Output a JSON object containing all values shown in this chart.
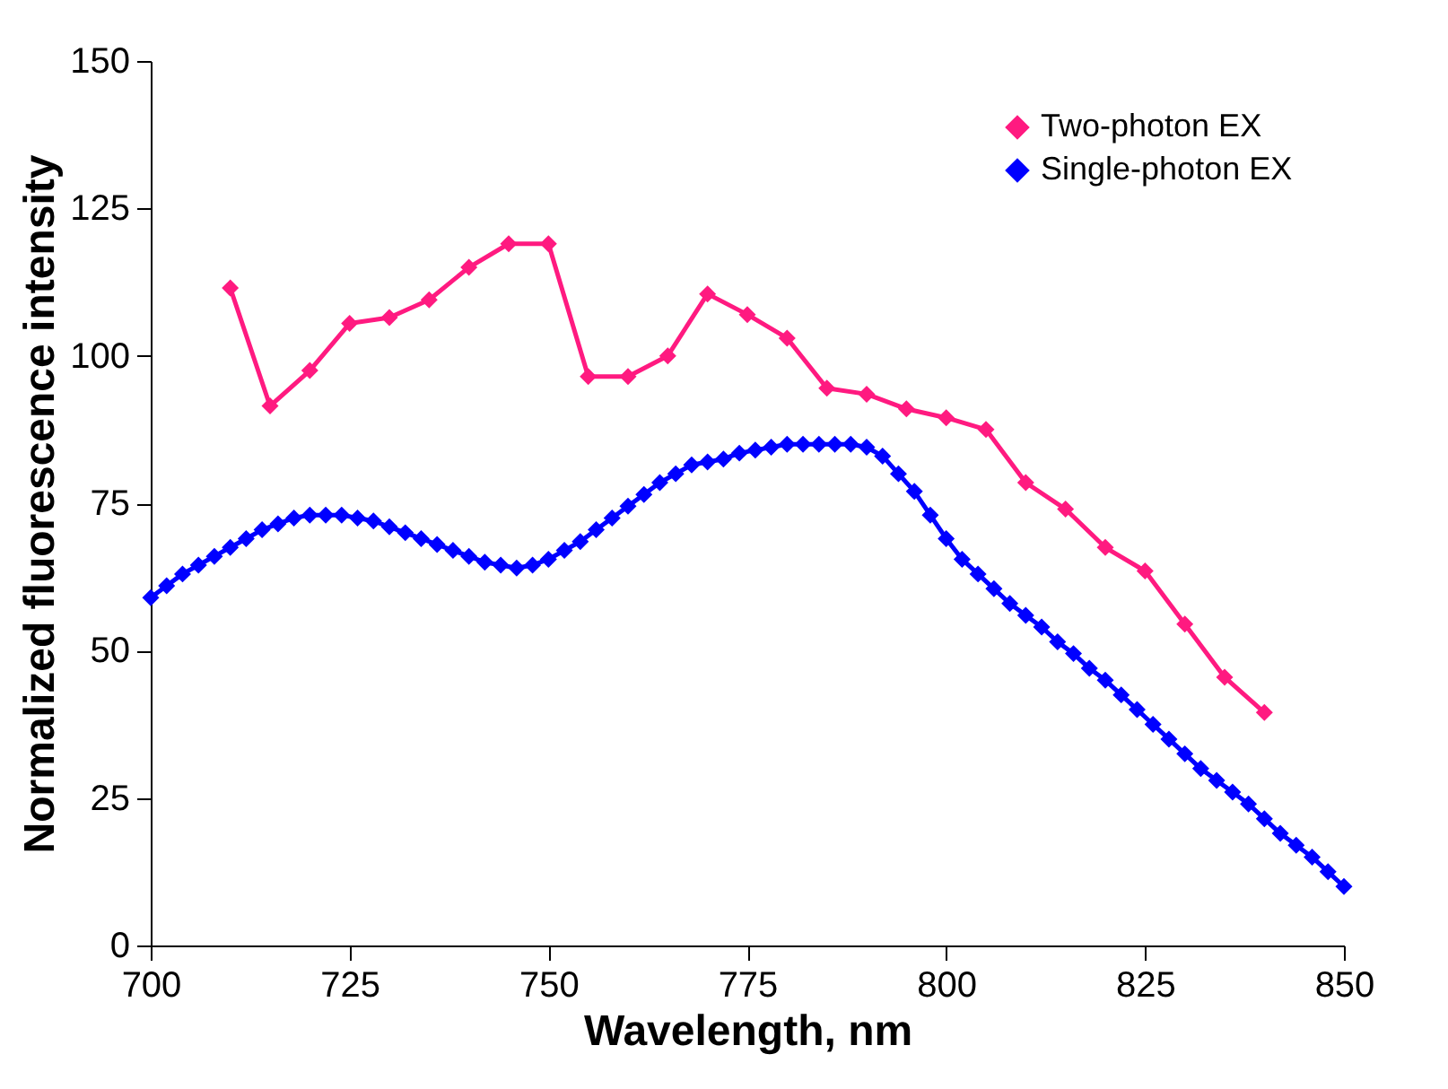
{
  "chart_data": {
    "type": "line",
    "xlabel": "Wavelength, nm",
    "ylabel": "Normalized fluorescence intensity",
    "xlim": [
      700,
      850
    ],
    "xticks": [
      700,
      725,
      750,
      775,
      800,
      825,
      850
    ],
    "ylim": [
      0,
      150
    ],
    "yticks": [
      0,
      25,
      50,
      75,
      100,
      125,
      150
    ],
    "grid": false,
    "legend": "top right",
    "marker": "diamond",
    "line_style": "solid",
    "series": [
      {
        "name": "Two-photon EX",
        "color": "#ff1a80",
        "x": [
          710,
          715,
          720,
          725,
          730,
          735,
          740,
          745,
          750,
          755,
          760,
          765,
          770,
          775,
          780,
          785,
          790,
          795,
          800,
          805,
          810,
          815,
          820,
          825,
          830,
          835,
          840
        ],
        "values": [
          111.5,
          91.5,
          97.5,
          105.5,
          106.5,
          109.5,
          115,
          119,
          119,
          96.5,
          96.5,
          100,
          110.5,
          107,
          103,
          94.5,
          93.5,
          91,
          89.5,
          87.5,
          78.5,
          74,
          67.5,
          63.5,
          54.5,
          45.5,
          39.5
        ]
      },
      {
        "name": "Single-photon EX",
        "color": "#0000ff",
        "x": [
          700,
          702,
          704,
          706,
          708,
          710,
          712,
          714,
          716,
          718,
          720,
          722,
          724,
          726,
          728,
          730,
          732,
          734,
          736,
          738,
          740,
          742,
          744,
          746,
          748,
          750,
          752,
          754,
          756,
          758,
          760,
          762,
          764,
          766,
          768,
          770,
          772,
          774,
          776,
          778,
          780,
          782,
          784,
          786,
          788,
          790,
          792,
          794,
          796,
          798,
          800,
          802,
          804,
          806,
          808,
          810,
          812,
          814,
          816,
          818,
          820,
          822,
          824,
          826,
          828,
          830,
          832,
          834,
          836,
          838,
          840,
          842,
          844,
          846,
          848,
          850
        ],
        "values": [
          59,
          61,
          63,
          64.5,
          66,
          67.5,
          69,
          70.5,
          71.5,
          72.5,
          73,
          73,
          73,
          72.5,
          72,
          71,
          70,
          69,
          68,
          67,
          66,
          65,
          64.5,
          64,
          64.5,
          65.5,
          67,
          68.5,
          70.5,
          72.5,
          74.5,
          76.5,
          78.5,
          80,
          81.5,
          82,
          82.5,
          83.5,
          84,
          84.5,
          85,
          85,
          85,
          85,
          85,
          84.5,
          83,
          80,
          77,
          73,
          69,
          65.5,
          63,
          60.5,
          58,
          56,
          54,
          51.5,
          49.5,
          47,
          45,
          42.5,
          40,
          37.5,
          35,
          32.5,
          30,
          28,
          26,
          24,
          21.5,
          19,
          17,
          15,
          12.5,
          10
        ]
      }
    ]
  }
}
